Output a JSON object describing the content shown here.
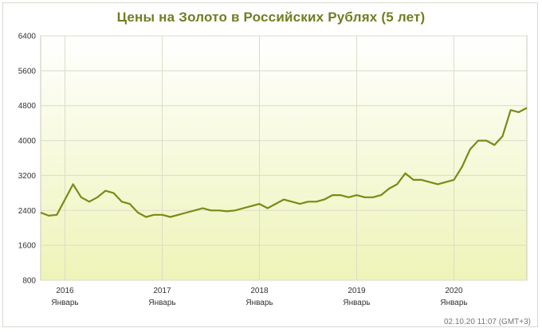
{
  "chart_data": {
    "type": "line",
    "title": "Цены на Золото в Российских Рублях (5 лет)",
    "ylim": [
      800,
      6400
    ],
    "y_ticks": [
      "6400",
      "5600",
      "4800",
      "4000",
      "3200",
      "2400",
      "1600",
      "800"
    ],
    "x_range": [
      "2015-10",
      "2020-10"
    ],
    "x_ticks": [
      {
        "year": "2016",
        "month": "Январь"
      },
      {
        "year": "2017",
        "month": "Январь"
      },
      {
        "year": "2018",
        "month": "Январь"
      },
      {
        "year": "2019",
        "month": "Январь"
      },
      {
        "year": "2020",
        "month": "Январь"
      }
    ],
    "grid": true,
    "colors": {
      "line": "#7a8a16",
      "title": "#6e7f22",
      "bg_top": "#ffffff",
      "bg_bottom": "#eef4b8"
    },
    "series": [
      {
        "x": [
          "2015-10",
          "2015-11",
          "2015-12",
          "2016-01",
          "2016-02",
          "2016-03",
          "2016-04",
          "2016-05",
          "2016-06",
          "2016-07",
          "2016-08",
          "2016-09",
          "2016-10",
          "2016-11",
          "2016-12",
          "2017-01",
          "2017-02",
          "2017-03",
          "2017-04",
          "2017-05",
          "2017-06",
          "2017-07",
          "2017-08",
          "2017-09",
          "2017-10",
          "2017-11",
          "2017-12",
          "2018-01",
          "2018-02",
          "2018-03",
          "2018-04",
          "2018-05",
          "2018-06",
          "2018-07",
          "2018-08",
          "2018-09",
          "2018-10",
          "2018-11",
          "2018-12",
          "2019-01",
          "2019-02",
          "2019-03",
          "2019-04",
          "2019-05",
          "2019-06",
          "2019-07",
          "2019-08",
          "2019-09",
          "2019-10",
          "2019-11",
          "2019-12",
          "2020-01",
          "2020-02",
          "2020-03",
          "2020-04",
          "2020-05",
          "2020-06",
          "2020-07",
          "2020-08",
          "2020-09",
          "2020-10"
        ],
        "values": [
          2350,
          2280,
          2300,
          2650,
          3000,
          2700,
          2600,
          2700,
          2850,
          2800,
          2600,
          2550,
          2350,
          2250,
          2300,
          2300,
          2250,
          2300,
          2350,
          2400,
          2450,
          2400,
          2400,
          2380,
          2400,
          2450,
          2500,
          2550,
          2450,
          2550,
          2650,
          2600,
          2550,
          2600,
          2600,
          2650,
          2750,
          2750,
          2700,
          2750,
          2700,
          2700,
          2750,
          2900,
          3000,
          3250,
          3100,
          3100,
          3050,
          3000,
          3050,
          3100,
          3400,
          3800,
          4000,
          4000,
          3900,
          4100,
          4700,
          4650,
          4750
        ]
      }
    ]
  },
  "timestamp": "02.10.20 11:07 (GMT+3)"
}
